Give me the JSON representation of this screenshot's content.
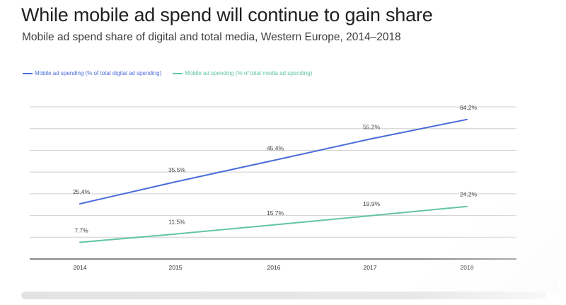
{
  "chart_data": {
    "type": "line",
    "title": "While mobile ad spend will continue to gain share",
    "subtitle": "Mobile ad spend share of digital and total media, Western Europe, 2014–2018",
    "categories": [
      "2014",
      "2015",
      "2016",
      "2017",
      "2018"
    ],
    "series": [
      {
        "name": "Mobile ad spending (% of total digital ad spending)",
        "values": [
          25.4,
          35.5,
          45.4,
          55.2,
          64.2
        ],
        "labels": [
          "25.4%",
          "35.5%",
          "45.4%",
          "55.2%",
          "64.2%"
        ],
        "color": "#4a6cdb"
      },
      {
        "name": "Mobile ad spending (% of total media ad spending)",
        "values": [
          7.7,
          11.5,
          15.7,
          19.9,
          24.2
        ],
        "labels": [
          "7.7%",
          "11.5%",
          "15.7%",
          "19.9%",
          "24.2%"
        ],
        "color": "#63c5a4"
      }
    ],
    "ylim": [
      0,
      70
    ],
    "grid": true,
    "legend_position": "top-left",
    "axis_color": "#444444",
    "grid_color": "#cfcfcf"
  }
}
